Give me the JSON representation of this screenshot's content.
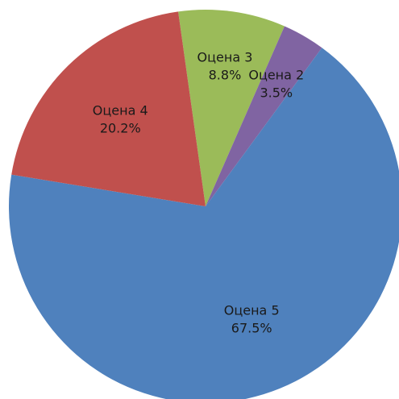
{
  "chart_data": {
    "type": "pie",
    "categories": [
      "Оцена 3",
      "Оцена 2",
      "Оцена 5",
      "Оцена 4"
    ],
    "values": [
      8.8,
      3.5,
      67.5,
      20.2
    ],
    "value_labels": [
      "8.8%",
      "3.5%",
      "67.5%",
      "20.2%"
    ],
    "colors": [
      "#9bbb59",
      "#8064a2",
      "#4f81bd",
      "#c0504d"
    ]
  }
}
